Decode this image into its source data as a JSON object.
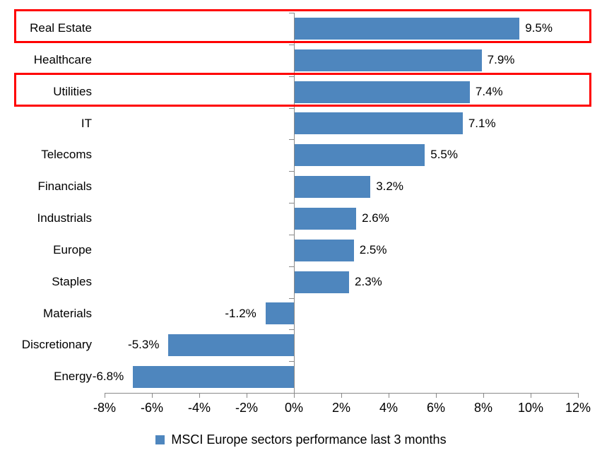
{
  "chart_data": {
    "type": "bar",
    "orientation": "horizontal",
    "title": "",
    "categories": [
      "Real Estate",
      "Healthcare",
      "Utilities",
      "IT",
      "Telecoms",
      "Financials",
      "Industrials",
      "Europe",
      "Staples",
      "Materials",
      "Discretionary",
      "Energy"
    ],
    "values": [
      9.5,
      7.9,
      7.4,
      7.1,
      5.5,
      3.2,
      2.6,
      2.5,
      2.3,
      -1.2,
      -5.3,
      -6.8
    ],
    "data_labels": [
      "9.5%",
      "7.9%",
      "7.4%",
      "7.1%",
      "5.5%",
      "3.2%",
      "2.6%",
      "2.5%",
      "2.3%",
      "-1.2%",
      "-5.3%",
      "-6.8%"
    ],
    "x_ticks": [
      "-8%",
      "-6%",
      "-4%",
      "-2%",
      "0%",
      "2%",
      "4%",
      "6%",
      "8%",
      "10%",
      "12%"
    ],
    "x_tick_values": [
      -8,
      -6,
      -4,
      -2,
      0,
      2,
      4,
      6,
      8,
      10,
      12
    ],
    "xlim": [
      -8,
      12
    ],
    "grid": false,
    "legend": "MSCI Europe sectors performance last 3 months",
    "legend_position": "bottom-center",
    "highlighted_categories": [
      "Real Estate",
      "Utilities"
    ],
    "colors": {
      "bar": "#4E86BE",
      "axis": "#898989",
      "text": "#000000",
      "highlight": "#FF0000",
      "background": "#FFFFFF"
    }
  }
}
